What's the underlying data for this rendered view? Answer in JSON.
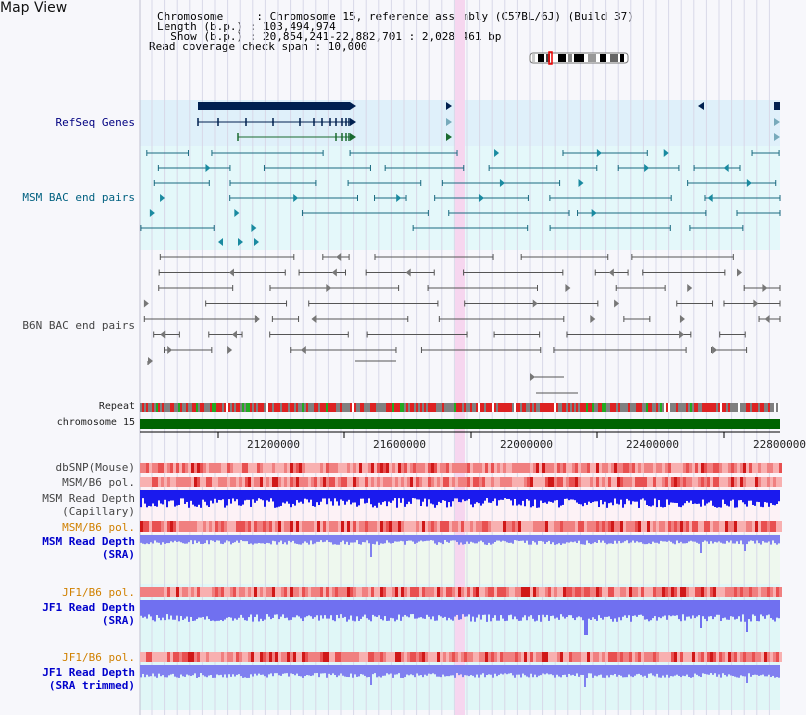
{
  "page": {
    "title": "Map View"
  },
  "info": {
    "line1": "Chromosome     : Chromosome 15, reference assembly (C57BL/6J) (Build 37)",
    "line2": "Length (b.p.) : 103,494,974",
    "line3": "  Show (b.p.) : 20,854,241-22,882,701 : 2,028,461 bp",
    "line4": "Read coverage check span : 10,000"
  },
  "tracks": {
    "refseq": "RefSeq Genes",
    "msm_bac": "MSM BAC end pairs",
    "b6n_bac": "B6N BAC end pairs",
    "repeat": "Repeat",
    "chromosome": "chromosome 15",
    "dbsnp": "dbSNP(Mouse)",
    "msm_b6_pol": "MSM/B6 pol.",
    "msm_read_depth": "MSM Read Depth",
    "capillary": "(Capillary)",
    "msm_b6_pol2": "MSM/B6 pol.",
    "msm_read_depth2": "MSM Read Depth",
    "sra": "(SRA)",
    "jf1_b6_pol": "JF1/B6 pol.",
    "jf1_read_depth": "JF1 Read Depth",
    "sra2": "(SRA)",
    "jf1_b6_pol2": "JF1/B6 pol.",
    "jf1_read_depth2": "JF1 Read Depth",
    "sra_trimmed": "(SRA trimmed)"
  },
  "axis": {
    "ticks": [
      "21200000",
      "21600000",
      "22000000",
      "22400000",
      "22800000"
    ]
  },
  "colors": {
    "refseq_bg": "#dff0fa",
    "bac_bg": "#e4f8fa",
    "highlight": "#f6d6ef",
    "chromosome": "#006400",
    "depth_blue": "#1a1aff"
  }
}
